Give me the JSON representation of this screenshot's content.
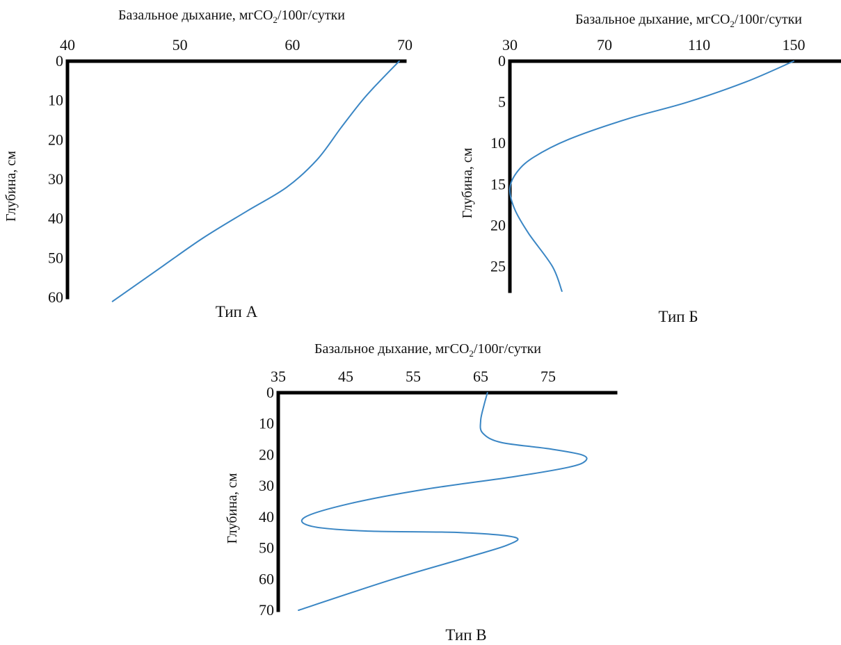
{
  "colors": {
    "line": "#3a86c4",
    "axis": "#000000",
    "background": "#ffffff"
  },
  "chart_data": [
    {
      "type": "line",
      "panel_label": "Тип А",
      "xlabel": {
        "prefix": "Базальное дыхание, мгCO",
        "sub": "2",
        "suffix": "/100г/сутки"
      },
      "ylabel": "Глубина, см",
      "x_axis_position": "top",
      "y_inverted": true,
      "xlim": [
        40,
        70
      ],
      "ylim": [
        0,
        60
      ],
      "x_ticks": [
        40,
        50,
        60,
        70
      ],
      "y_ticks": [
        0,
        10,
        20,
        30,
        40,
        50,
        60
      ],
      "series": [
        {
          "x": [
            69.5,
            67.8,
            66.2,
            64.3,
            62.2,
            59.5,
            56.0,
            52.0,
            48.0,
            44.0
          ],
          "y": [
            0,
            5,
            10,
            17,
            25,
            32,
            38,
            45,
            53,
            61
          ]
        }
      ]
    },
    {
      "type": "line",
      "panel_label": "Тип Б",
      "xlabel": {
        "prefix": "Базальное дыхание, мгCO",
        "sub": "2",
        "suffix": "/100г/сутки"
      },
      "ylabel": "Глубина, см",
      "x_axis_position": "top",
      "y_inverted": true,
      "xlim": [
        30,
        170
      ],
      "ylim": [
        0,
        28
      ],
      "x_ticks": [
        30,
        70,
        110,
        150
      ],
      "y_ticks": [
        0,
        5,
        10,
        15,
        20,
        25
      ],
      "series": [
        {
          "x": [
            150,
            130,
            105,
            80,
            55,
            40,
            33,
            30,
            32,
            38,
            48,
            52
          ],
          "y": [
            0,
            2.5,
            5,
            7,
            9.5,
            11.7,
            13.5,
            15.5,
            18,
            21,
            25,
            28
          ]
        }
      ]
    },
    {
      "type": "line",
      "panel_label": "Тип В",
      "xlabel": {
        "prefix": "Базальное дыхание, мгCO",
        "sub": "2",
        "suffix": "/100г/сутки"
      },
      "ylabel": "Глубина, см",
      "x_axis_position": "top",
      "y_inverted": true,
      "xlim": [
        35,
        85
      ],
      "ylim": [
        0,
        70
      ],
      "x_ticks": [
        35,
        45,
        55,
        65,
        75
      ],
      "y_ticks": [
        0,
        10,
        20,
        30,
        40,
        50,
        60,
        70
      ],
      "series": [
        {
          "x": [
            66,
            65.5,
            65,
            65.3,
            68,
            75,
            80,
            80.5,
            78,
            70,
            57,
            46,
            39,
            40,
            48,
            62,
            70,
            69,
            63,
            52,
            38
          ],
          "y": [
            0,
            4,
            9,
            13,
            16,
            18,
            20,
            22,
            24,
            27,
            31,
            35.5,
            40,
            43,
            44.5,
            45,
            46.5,
            49,
            53,
            60,
            70
          ]
        }
      ]
    }
  ]
}
